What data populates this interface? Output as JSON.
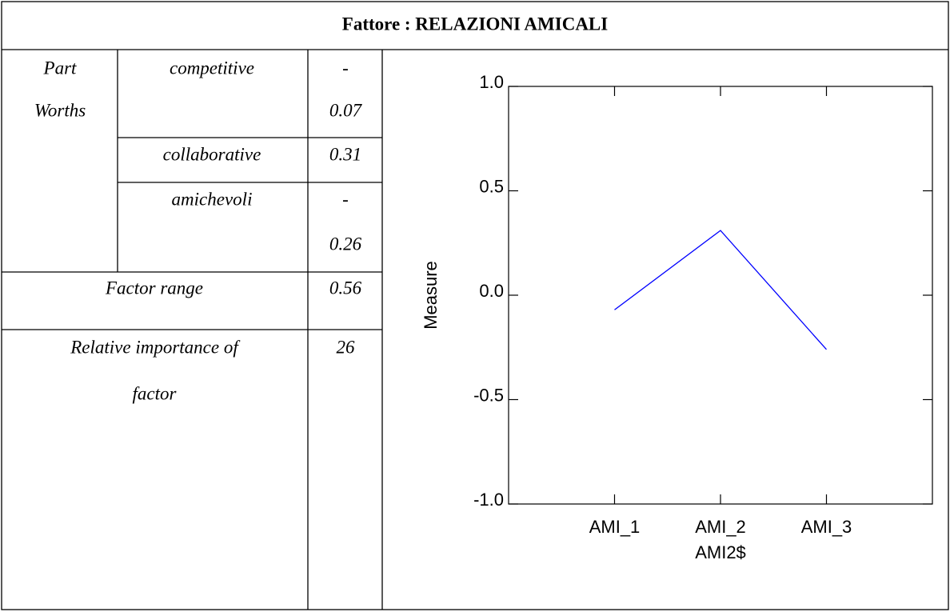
{
  "title": "Fattore : RELAZIONI AMICALI",
  "table": {
    "part_worths_label": [
      "Part",
      "Worths"
    ],
    "rows": [
      {
        "level": "competitive",
        "value_lines": [
          "-",
          "0.07"
        ]
      },
      {
        "level": "collaborative",
        "value_lines": [
          "0.31"
        ]
      },
      {
        "level": "amichevoli",
        "value_lines": [
          "-",
          "0.26"
        ]
      }
    ],
    "factor_range": {
      "label": "Factor range",
      "value": "0.56"
    },
    "relative_importance": {
      "label_lines": [
        "Relative importance of",
        "factor"
      ],
      "value": "26"
    }
  },
  "chart_data": {
    "type": "line",
    "categories": [
      "AMI_1",
      "AMI_2",
      "AMI_3"
    ],
    "values": [
      -0.07,
      0.31,
      -0.26
    ],
    "color": "#0000ff",
    "x_label": "AMI2$",
    "y_label": "Measure",
    "ylim": [
      -1,
      1
    ],
    "yticks": [
      {
        "value": -1,
        "label": "-1.0"
      },
      {
        "value": -0.5,
        "label": "-0.5"
      },
      {
        "value": 0,
        "label": "0.0"
      },
      {
        "value": 0.5,
        "label": "0.5"
      },
      {
        "value": 1,
        "label": "1.0"
      }
    ]
  }
}
